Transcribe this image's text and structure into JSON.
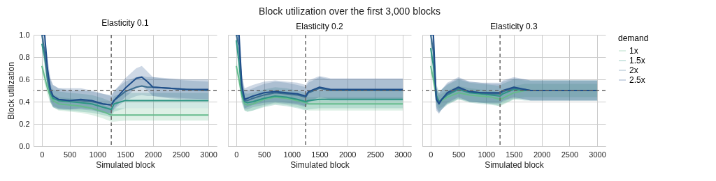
{
  "chart_data": [
    {
      "type": "line",
      "title": "Elasticity 0.1",
      "annotations": [
        "Block utilization over the first 3,000 blocks"
      ],
      "xlabel": "Simulated block",
      "ylabel": "Block utilization",
      "grid": true,
      "xlim": [
        -150,
        3150
      ],
      "xticks": [
        0,
        500,
        1000,
        1500,
        2000,
        2500,
        3000
      ],
      "ylim": [
        0,
        1
      ],
      "yticks": [
        {
          "value": 0,
          "label": "0.0"
        },
        0.2,
        0.4,
        0.6,
        0.8,
        {
          "value": 1,
          "label": "1.0"
        }
      ],
      "x": [
        0,
        50,
        100,
        150,
        200,
        300,
        500,
        700,
        900,
        1100,
        1250,
        1300,
        1500,
        1700,
        1800,
        1900,
        2000,
        2300,
        2600,
        3000
      ],
      "ref_lines": [
        {
          "axis": "y",
          "value": 0.5,
          "color": "#666666",
          "line_style": "dashed"
        },
        {
          "axis": "x",
          "value": 1250,
          "color": "#666666",
          "line_style": "dashed"
        }
      ],
      "series": [
        {
          "color": "#66bb8c",
          "values": [
            0.72,
            0.62,
            0.52,
            0.45,
            0.41,
            0.38,
            0.37,
            0.36,
            0.34,
            0.31,
            0.28,
            0.28,
            0.28,
            0.28,
            0.28,
            0.28,
            0.28,
            0.28,
            0.28,
            0.28
          ],
          "lower": [
            0.66,
            0.56,
            0.46,
            0.39,
            0.35,
            0.32,
            0.31,
            0.3,
            0.28,
            0.25,
            0.22,
            0.22,
            0.23,
            0.23,
            0.23,
            0.23,
            0.23,
            0.23,
            0.23,
            0.23
          ],
          "upper": [
            0.78,
            0.68,
            0.58,
            0.51,
            0.47,
            0.44,
            0.43,
            0.42,
            0.4,
            0.37,
            0.34,
            0.34,
            0.34,
            0.34,
            0.34,
            0.34,
            0.34,
            0.34,
            0.34,
            0.34
          ]
        },
        {
          "color": "#2e9584",
          "values": [
            0.92,
            0.8,
            0.6,
            0.48,
            0.43,
            0.41,
            0.4,
            0.39,
            0.38,
            0.35,
            0.33,
            0.38,
            0.41,
            0.41,
            0.41,
            0.41,
            0.41,
            0.41,
            0.41,
            0.41
          ],
          "lower": [
            0.85,
            0.72,
            0.52,
            0.4,
            0.35,
            0.33,
            0.32,
            0.31,
            0.3,
            0.28,
            0.26,
            0.31,
            0.34,
            0.34,
            0.34,
            0.34,
            0.34,
            0.34,
            0.34,
            0.34
          ],
          "upper": [
            0.99,
            0.88,
            0.68,
            0.56,
            0.51,
            0.49,
            0.48,
            0.47,
            0.46,
            0.43,
            0.4,
            0.45,
            0.48,
            0.48,
            0.48,
            0.48,
            0.48,
            0.48,
            0.48,
            0.48
          ]
        },
        {
          "color": "#3c6e90",
          "values": [
            1,
            0.85,
            0.62,
            0.5,
            0.45,
            0.42,
            0.41,
            0.41,
            0.4,
            0.38,
            0.37,
            0.41,
            0.49,
            0.53,
            0.54,
            0.53,
            0.53,
            0.52,
            0.51,
            0.5
          ],
          "lower": [
            0.92,
            0.75,
            0.52,
            0.4,
            0.35,
            0.33,
            0.33,
            0.33,
            0.32,
            0.3,
            0.29,
            0.33,
            0.41,
            0.45,
            0.46,
            0.45,
            0.45,
            0.44,
            0.43,
            0.42
          ],
          "upper": [
            1,
            0.95,
            0.72,
            0.6,
            0.55,
            0.52,
            0.5,
            0.5,
            0.49,
            0.47,
            0.46,
            0.5,
            0.58,
            0.62,
            0.63,
            0.62,
            0.62,
            0.6,
            0.59,
            0.58
          ]
        },
        {
          "color": "#1f4e8a",
          "values": [
            1,
            1,
            0.7,
            0.52,
            0.45,
            0.42,
            0.41,
            0.42,
            0.41,
            0.38,
            0.37,
            0.41,
            0.52,
            0.61,
            0.62,
            0.58,
            0.53,
            0.52,
            0.51,
            0.51
          ],
          "lower": [
            0.94,
            0.9,
            0.6,
            0.42,
            0.36,
            0.34,
            0.33,
            0.34,
            0.33,
            0.3,
            0.3,
            0.34,
            0.44,
            0.52,
            0.54,
            0.5,
            0.45,
            0.43,
            0.42,
            0.42
          ],
          "upper": [
            1,
            1,
            0.8,
            0.62,
            0.55,
            0.52,
            0.52,
            0.52,
            0.5,
            0.47,
            0.45,
            0.49,
            0.61,
            0.7,
            0.72,
            0.67,
            0.62,
            0.61,
            0.6,
            0.6
          ]
        }
      ]
    },
    {
      "type": "line",
      "title": "Elasticity 0.2",
      "xlabel": "Simulated block",
      "grid": true,
      "tick_labels": "x",
      "xlim": [
        -150,
        3150
      ],
      "xticks": [
        0,
        500,
        1000,
        1500,
        2000,
        2500,
        3000
      ],
      "ylim": [
        0,
        1
      ],
      "yticks": [
        0,
        0.2,
        0.4,
        0.6,
        0.8,
        1
      ],
      "x": [
        0,
        50,
        100,
        150,
        200,
        300,
        500,
        700,
        900,
        1100,
        1250,
        1300,
        1500,
        1700,
        1800,
        1900,
        2000,
        2300,
        2600,
        3000
      ],
      "ref_lines": [
        {
          "axis": "y",
          "value": 0.5,
          "color": "#666666",
          "line_style": "dashed"
        },
        {
          "axis": "x",
          "value": 1250,
          "color": "#666666",
          "line_style": "dashed"
        }
      ],
      "series": [
        {
          "color": "#66bb8c",
          "values": [
            0.72,
            0.6,
            0.45,
            0.38,
            0.37,
            0.38,
            0.42,
            0.44,
            0.43,
            0.41,
            0.39,
            0.38,
            0.38,
            0.38,
            0.38,
            0.38,
            0.38,
            0.38,
            0.38,
            0.38
          ],
          "lower": [
            0.66,
            0.54,
            0.39,
            0.32,
            0.31,
            0.32,
            0.36,
            0.38,
            0.37,
            0.35,
            0.33,
            0.32,
            0.32,
            0.32,
            0.32,
            0.32,
            0.32,
            0.32,
            0.32,
            0.32
          ],
          "upper": [
            0.78,
            0.66,
            0.51,
            0.44,
            0.43,
            0.44,
            0.48,
            0.5,
            0.49,
            0.47,
            0.45,
            0.44,
            0.44,
            0.44,
            0.44,
            0.44,
            0.44,
            0.44,
            0.44,
            0.44
          ]
        },
        {
          "color": "#2e9584",
          "values": [
            0.95,
            0.75,
            0.48,
            0.4,
            0.39,
            0.4,
            0.43,
            0.45,
            0.44,
            0.42,
            0.4,
            0.41,
            0.42,
            0.42,
            0.42,
            0.42,
            0.42,
            0.42,
            0.42,
            0.42
          ],
          "lower": [
            0.88,
            0.66,
            0.39,
            0.32,
            0.31,
            0.32,
            0.35,
            0.37,
            0.36,
            0.34,
            0.32,
            0.33,
            0.34,
            0.34,
            0.34,
            0.34,
            0.34,
            0.34,
            0.34,
            0.34
          ],
          "upper": [
            1,
            0.84,
            0.57,
            0.48,
            0.47,
            0.48,
            0.51,
            0.53,
            0.52,
            0.5,
            0.48,
            0.49,
            0.5,
            0.5,
            0.5,
            0.5,
            0.5,
            0.5,
            0.5,
            0.5
          ]
        },
        {
          "color": "#3c6e90",
          "values": [
            1,
            0.9,
            0.52,
            0.41,
            0.41,
            0.43,
            0.46,
            0.48,
            0.47,
            0.46,
            0.44,
            0.48,
            0.52,
            0.5,
            0.5,
            0.5,
            0.5,
            0.5,
            0.5,
            0.5
          ],
          "lower": [
            0.93,
            0.8,
            0.42,
            0.33,
            0.33,
            0.35,
            0.37,
            0.39,
            0.38,
            0.37,
            0.35,
            0.39,
            0.43,
            0.41,
            0.41,
            0.41,
            0.41,
            0.41,
            0.41,
            0.41
          ],
          "upper": [
            1,
            1,
            0.62,
            0.5,
            0.5,
            0.52,
            0.56,
            0.58,
            0.57,
            0.55,
            0.53,
            0.57,
            0.62,
            0.6,
            0.6,
            0.6,
            0.6,
            0.6,
            0.6,
            0.6
          ]
        },
        {
          "color": "#1f4e8a",
          "values": [
            1,
            1,
            0.55,
            0.42,
            0.43,
            0.45,
            0.48,
            0.49,
            0.48,
            0.47,
            0.45,
            0.49,
            0.53,
            0.51,
            0.51,
            0.51,
            0.51,
            0.51,
            0.51,
            0.51
          ],
          "lower": [
            0.94,
            0.9,
            0.45,
            0.34,
            0.35,
            0.37,
            0.39,
            0.4,
            0.39,
            0.38,
            0.36,
            0.4,
            0.44,
            0.42,
            0.42,
            0.42,
            0.42,
            0.42,
            0.42,
            0.42
          ],
          "upper": [
            1,
            1,
            0.65,
            0.52,
            0.53,
            0.55,
            0.58,
            0.59,
            0.58,
            0.57,
            0.55,
            0.59,
            0.63,
            0.61,
            0.61,
            0.61,
            0.61,
            0.61,
            0.61,
            0.61
          ]
        }
      ]
    },
    {
      "type": "line",
      "title": "Elasticity 0.3",
      "xlabel": "Simulated block",
      "grid": true,
      "tick_labels": "x",
      "legend": "right",
      "legend_title": "demand",
      "xlim": [
        -150,
        3150
      ],
      "xticks": [
        0,
        500,
        1000,
        1500,
        2000,
        2500,
        3000
      ],
      "ylim": [
        0,
        1
      ],
      "yticks": [
        0,
        0.2,
        0.4,
        0.6,
        0.8,
        1
      ],
      "x": [
        0,
        50,
        100,
        150,
        200,
        300,
        500,
        700,
        900,
        1100,
        1250,
        1300,
        1500,
        1700,
        1800,
        1900,
        2000,
        2300,
        2600,
        3000
      ],
      "ref_lines": [
        {
          "axis": "y",
          "value": 0.5,
          "color": "#666666",
          "line_style": "dashed"
        },
        {
          "axis": "x",
          "value": 1250,
          "color": "#666666",
          "line_style": "dashed"
        }
      ],
      "series": [
        {
          "name": "1x",
          "color": "#66bb8c",
          "values": [
            0.72,
            0.6,
            0.45,
            0.4,
            0.41,
            0.44,
            0.48,
            0.46,
            0.45,
            0.44,
            0.42,
            0.43,
            0.48,
            0.5,
            0.5,
            0.5,
            0.5,
            0.5,
            0.5,
            0.5
          ],
          "lower": [
            0.66,
            0.54,
            0.39,
            0.34,
            0.35,
            0.38,
            0.42,
            0.4,
            0.39,
            0.38,
            0.36,
            0.37,
            0.42,
            0.44,
            0.44,
            0.44,
            0.44,
            0.44,
            0.44,
            0.44
          ],
          "upper": [
            0.78,
            0.66,
            0.51,
            0.46,
            0.47,
            0.5,
            0.54,
            0.52,
            0.51,
            0.5,
            0.48,
            0.49,
            0.54,
            0.56,
            0.56,
            0.56,
            0.56,
            0.56,
            0.56,
            0.56
          ]
        },
        {
          "name": "1.5x",
          "color": "#2e9584",
          "values": [
            0.88,
            0.72,
            0.46,
            0.4,
            0.42,
            0.46,
            0.51,
            0.48,
            0.47,
            0.46,
            0.45,
            0.47,
            0.51,
            0.5,
            0.5,
            0.5,
            0.5,
            0.5,
            0.5,
            0.5
          ],
          "lower": [
            0.8,
            0.62,
            0.36,
            0.31,
            0.33,
            0.37,
            0.42,
            0.39,
            0.38,
            0.37,
            0.36,
            0.38,
            0.42,
            0.41,
            0.41,
            0.41,
            0.41,
            0.41,
            0.41,
            0.41
          ],
          "upper": [
            0.96,
            0.82,
            0.56,
            0.49,
            0.51,
            0.55,
            0.6,
            0.57,
            0.56,
            0.55,
            0.54,
            0.56,
            0.6,
            0.59,
            0.59,
            0.59,
            0.59,
            0.59,
            0.59,
            0.59
          ]
        },
        {
          "name": "2x",
          "color": "#3c6e90",
          "values": [
            1,
            0.85,
            0.44,
            0.39,
            0.42,
            0.47,
            0.52,
            0.49,
            0.48,
            0.47,
            0.47,
            0.49,
            0.52,
            0.51,
            0.5,
            0.5,
            0.5,
            0.5,
            0.5,
            0.5
          ],
          "lower": [
            0.92,
            0.75,
            0.34,
            0.3,
            0.33,
            0.38,
            0.43,
            0.4,
            0.39,
            0.38,
            0.38,
            0.4,
            0.43,
            0.42,
            0.41,
            0.41,
            0.41,
            0.41,
            0.41,
            0.41
          ],
          "upper": [
            1,
            0.95,
            0.54,
            0.48,
            0.51,
            0.56,
            0.61,
            0.58,
            0.57,
            0.56,
            0.56,
            0.58,
            0.61,
            0.6,
            0.59,
            0.59,
            0.59,
            0.59,
            0.59,
            0.59
          ]
        },
        {
          "name": "2.5x",
          "color": "#1f4e8a",
          "values": [
            1,
            1,
            0.42,
            0.38,
            0.42,
            0.48,
            0.53,
            0.49,
            0.48,
            0.48,
            0.48,
            0.5,
            0.53,
            0.51,
            0.5,
            0.5,
            0.5,
            0.5,
            0.5,
            0.5
          ],
          "lower": [
            0.94,
            0.9,
            0.32,
            0.29,
            0.33,
            0.39,
            0.44,
            0.4,
            0.39,
            0.39,
            0.39,
            0.41,
            0.44,
            0.42,
            0.41,
            0.41,
            0.41,
            0.41,
            0.41,
            0.41
          ],
          "upper": [
            1,
            1,
            0.52,
            0.47,
            0.51,
            0.57,
            0.62,
            0.58,
            0.57,
            0.57,
            0.57,
            0.59,
            0.62,
            0.6,
            0.59,
            0.59,
            0.59,
            0.59,
            0.59,
            0.59
          ]
        }
      ]
    }
  ]
}
